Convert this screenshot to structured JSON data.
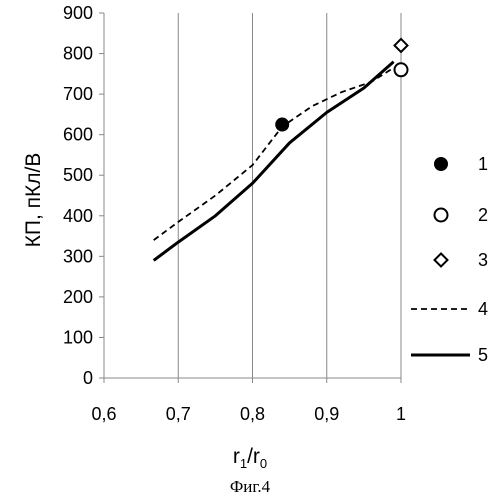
{
  "chart_data": {
    "type": "line",
    "ylabel": "КП, пКл/В",
    "xlabel_main": "r",
    "xlabel_sub1": "1",
    "xlabel_slash": "/r",
    "xlabel_sub0": "0",
    "caption": "Фиг.4",
    "xlim": [
      0.6,
      1.0
    ],
    "ylim": [
      0,
      900
    ],
    "x_ticks": [
      {
        "value": 0.6,
        "label": "0,6"
      },
      {
        "value": 0.7,
        "label": "0,7"
      },
      {
        "value": 0.8,
        "label": "0,8"
      },
      {
        "value": 0.9,
        "label": "0,9"
      },
      {
        "value": 1.0,
        "label": "1"
      }
    ],
    "y_ticks": [
      {
        "value": 0,
        "label": "0"
      },
      {
        "value": 100,
        "label": "100"
      },
      {
        "value": 200,
        "label": "200"
      },
      {
        "value": 300,
        "label": "300"
      },
      {
        "value": 400,
        "label": "400"
      },
      {
        "value": 500,
        "label": "500"
      },
      {
        "value": 600,
        "label": "600"
      },
      {
        "value": 700,
        "label": "700"
      },
      {
        "value": 800,
        "label": "800"
      },
      {
        "value": 900,
        "label": "900"
      }
    ],
    "grid": "vertical",
    "legend_position": "right",
    "series": [
      {
        "name": "1",
        "kind": "marker",
        "marker": "filled-circle",
        "points": [
          {
            "x": 0.84,
            "y": 625
          }
        ]
      },
      {
        "name": "2",
        "kind": "marker",
        "marker": "open-circle",
        "points": [
          {
            "x": 1.0,
            "y": 760
          }
        ]
      },
      {
        "name": "3",
        "kind": "marker",
        "marker": "open-diamond",
        "points": [
          {
            "x": 1.0,
            "y": 820
          }
        ]
      },
      {
        "name": "4",
        "kind": "line",
        "style": "dashed",
        "points": [
          {
            "x": 0.667,
            "y": 340
          },
          {
            "x": 0.7,
            "y": 385
          },
          {
            "x": 0.75,
            "y": 450
          },
          {
            "x": 0.8,
            "y": 525
          },
          {
            "x": 0.84,
            "y": 620
          },
          {
            "x": 0.88,
            "y": 670
          },
          {
            "x": 0.92,
            "y": 705
          },
          {
            "x": 0.96,
            "y": 730
          },
          {
            "x": 0.99,
            "y": 765
          }
        ]
      },
      {
        "name": "5",
        "kind": "line",
        "style": "solid",
        "points": [
          {
            "x": 0.667,
            "y": 290
          },
          {
            "x": 0.7,
            "y": 335
          },
          {
            "x": 0.75,
            "y": 400
          },
          {
            "x": 0.8,
            "y": 480
          },
          {
            "x": 0.85,
            "y": 580
          },
          {
            "x": 0.9,
            "y": 655
          },
          {
            "x": 0.95,
            "y": 715
          },
          {
            "x": 0.99,
            "y": 780
          }
        ]
      }
    ]
  }
}
